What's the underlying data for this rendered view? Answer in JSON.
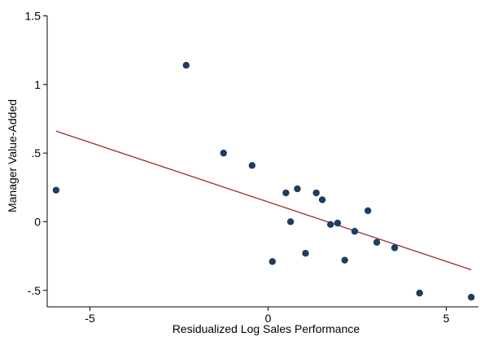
{
  "chart_data": {
    "type": "scatter",
    "title": "",
    "xlabel": "Residualized Log Sales Performance",
    "ylabel": "Manager Value-Added",
    "xlim": [
      -6.2,
      5.9
    ],
    "ylim": [
      -0.62,
      1.58
    ],
    "grid": false,
    "legend": "none",
    "x_ticks": [
      {
        "value": -5,
        "label": "-5"
      },
      {
        "value": 0,
        "label": "0"
      },
      {
        "value": 5,
        "label": "5"
      }
    ],
    "y_ticks": [
      {
        "value": 1.5,
        "label": "1.5"
      },
      {
        "value": 1,
        "label": "1"
      },
      {
        "value": 0.5,
        "label": ".5"
      },
      {
        "value": 0,
        "label": "0"
      },
      {
        "value": -0.5,
        "label": "-.5"
      }
    ],
    "points": [
      {
        "x": -5.95,
        "y": 0.23
      },
      {
        "x": -2.3,
        "y": 1.14
      },
      {
        "x": -1.25,
        "y": 0.5
      },
      {
        "x": -0.45,
        "y": 0.41
      },
      {
        "x": 0.12,
        "y": -0.29
      },
      {
        "x": 0.5,
        "y": 0.21
      },
      {
        "x": 0.63,
        "y": 0.0
      },
      {
        "x": 0.82,
        "y": 0.24
      },
      {
        "x": 1.05,
        "y": -0.23
      },
      {
        "x": 1.35,
        "y": 0.21
      },
      {
        "x": 1.52,
        "y": 0.16
      },
      {
        "x": 1.75,
        "y": -0.02
      },
      {
        "x": 1.95,
        "y": -0.01
      },
      {
        "x": 2.15,
        "y": -0.28
      },
      {
        "x": 2.43,
        "y": -0.07
      },
      {
        "x": 2.8,
        "y": 0.08
      },
      {
        "x": 3.05,
        "y": -0.15
      },
      {
        "x": 3.55,
        "y": -0.19
      },
      {
        "x": 4.25,
        "y": -0.52
      },
      {
        "x": 5.7,
        "y": -0.55
      }
    ],
    "fit_line": {
      "x": [
        -5.95,
        5.7
      ],
      "y": [
        0.66,
        -0.35
      ]
    },
    "colors": {
      "marker": "#1c3e62",
      "fit_line": "#9b2a2e",
      "axis": "#000000"
    }
  }
}
